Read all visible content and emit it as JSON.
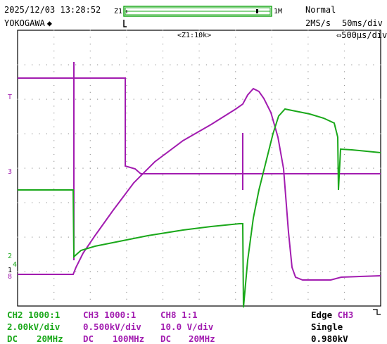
{
  "header": {
    "datetime": "2025/12/03 13:28:52",
    "brand": "YOKOGAWA",
    "brand_icon": "diamond-icon",
    "zoom_marker_left": "Z1",
    "zoom_marker_right": "1M",
    "trigger_mode": "Normal",
    "sample_rate": "2MS/s",
    "time_div": "50ms/div",
    "zoom_label": "<Z1:10k>",
    "zoom_time_div": "500μs/div"
  },
  "colors": {
    "ch2": "#1aa81a",
    "ch3": "#a21cb0",
    "ch8": "#a21cb0",
    "grid": "#9a9a9a"
  },
  "channels": [
    {
      "name": "CH2 1000:1",
      "vdiv": "2.00kV/div",
      "coupling": "DC",
      "bandwidth": "20MHz"
    },
    {
      "name": "CH3 1000:1",
      "vdiv": "0.500kV/div",
      "coupling": "DC",
      "bandwidth": "100MHz"
    },
    {
      "name": "CH8 1:1",
      "vdiv": "10.0 V/div",
      "coupling": "DC",
      "bandwidth": "20MHz"
    }
  ],
  "trigger": {
    "type": "Edge",
    "source": "CH3",
    "mode": "Single",
    "level": "0.980kV"
  },
  "channel_markers": [
    "T",
    "3",
    "2",
    "4",
    "1",
    "8"
  ]
}
